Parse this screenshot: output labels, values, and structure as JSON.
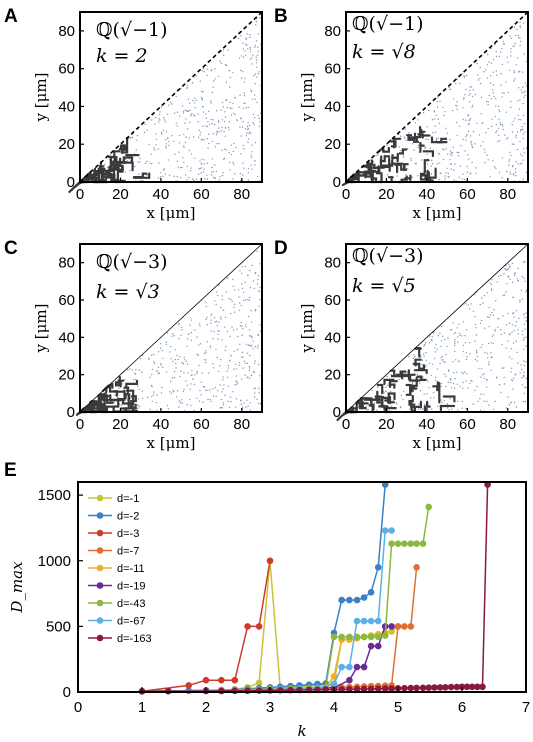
{
  "panel_a": {
    "label": "A",
    "field": "ℚ(√−1)",
    "k": "k = 2"
  },
  "panel_b": {
    "label": "B",
    "field": "ℚ(√−1)",
    "k": "k = √8"
  },
  "panel_c": {
    "label": "C",
    "field": "ℚ(√−3)",
    "k": "k = √3"
  },
  "panel_d": {
    "label": "D",
    "field": "ℚ(√−3)",
    "k": "k = √5"
  },
  "panel_e": {
    "label": "E"
  },
  "small_axes": {
    "xlabel": "x [μm]",
    "ylabel": "y [μm]",
    "xticks": [
      "0",
      "20",
      "40",
      "60",
      "80"
    ],
    "yticks": [
      "0",
      "20",
      "40",
      "60",
      "80"
    ]
  },
  "colors": {
    "line": "#000000",
    "cluster": "#3a3a3a",
    "background_dots": "#7f98b8"
  },
  "chart_data": {
    "type": "line",
    "xlabel": "k",
    "ylabel": "D_max",
    "xlim": [
      0,
      7
    ],
    "ylim": [
      0,
      1600
    ],
    "xticks": [
      "0",
      "1",
      "2",
      "3",
      "4",
      "5",
      "6",
      "7"
    ],
    "yticks": [
      "0",
      "500",
      "1000",
      "1500"
    ],
    "legend_position": "top-left",
    "series": [
      {
        "name": "d=-1",
        "color": "#c8c43a",
        "points": [
          [
            1,
            5
          ],
          [
            1.41,
            8
          ],
          [
            2,
            12
          ],
          [
            2.24,
            15
          ],
          [
            2.45,
            20
          ],
          [
            2.65,
            35
          ],
          [
            2.83,
            70
          ],
          [
            3,
            1000
          ],
          [
            3.16,
            30
          ],
          [
            3.32,
            35
          ],
          [
            3.46,
            40
          ],
          [
            3.61,
            45
          ],
          [
            3.74,
            50
          ],
          [
            3.87,
            55
          ],
          [
            4,
            65
          ],
          [
            4.12,
            400
          ],
          [
            4.24,
            400
          ],
          [
            4.36,
            410
          ],
          [
            4.47,
            420
          ],
          [
            4.58,
            430
          ],
          [
            4.69,
            440
          ],
          [
            4.8,
            450
          ],
          [
            4.9,
            460
          ],
          [
            5,
            500
          ]
        ]
      },
      {
        "name": "d=-2",
        "color": "#3a7fc8",
        "points": [
          [
            1,
            5
          ],
          [
            1.41,
            8
          ],
          [
            1.73,
            10
          ],
          [
            2,
            12
          ],
          [
            2.24,
            15
          ],
          [
            2.45,
            18
          ],
          [
            2.65,
            25
          ],
          [
            2.83,
            30
          ],
          [
            3,
            35
          ],
          [
            3.16,
            40
          ],
          [
            3.32,
            45
          ],
          [
            3.46,
            50
          ],
          [
            3.61,
            55
          ],
          [
            3.74,
            60
          ],
          [
            3.87,
            65
          ],
          [
            4,
            450
          ],
          [
            4.12,
            700
          ],
          [
            4.24,
            700
          ],
          [
            4.36,
            700
          ],
          [
            4.47,
            720
          ],
          [
            4.58,
            760
          ],
          [
            4.69,
            950
          ],
          [
            4.8,
            1580
          ]
        ]
      },
      {
        "name": "d=-3",
        "color": "#d03a2a",
        "points": [
          [
            1,
            5
          ],
          [
            1.73,
            50
          ],
          [
            2,
            90
          ],
          [
            2.24,
            90
          ],
          [
            2.45,
            90
          ],
          [
            2.65,
            500
          ],
          [
            2.83,
            500
          ],
          [
            3,
            1000
          ]
        ]
      },
      {
        "name": "d=-7",
        "color": "#e07030",
        "points": [
          [
            1,
            5
          ],
          [
            1.41,
            8
          ],
          [
            2,
            12
          ],
          [
            2.24,
            14
          ],
          [
            2.65,
            16
          ],
          [
            2.83,
            18
          ],
          [
            3,
            20
          ],
          [
            3.16,
            22
          ],
          [
            3.32,
            24
          ],
          [
            3.46,
            26
          ],
          [
            3.61,
            28
          ],
          [
            3.74,
            30
          ],
          [
            3.87,
            32
          ],
          [
            4,
            34
          ],
          [
            4.12,
            36
          ],
          [
            4.24,
            38
          ],
          [
            4.36,
            40
          ],
          [
            4.47,
            42
          ],
          [
            4.58,
            44
          ],
          [
            4.69,
            46
          ],
          [
            4.8,
            48
          ],
          [
            4.9,
            50
          ],
          [
            5,
            500
          ],
          [
            5.1,
            500
          ],
          [
            5.2,
            500
          ],
          [
            5.29,
            950
          ]
        ]
      },
      {
        "name": "d=-11",
        "color": "#e8b030",
        "points": [
          [
            1,
            5
          ],
          [
            1.41,
            8
          ],
          [
            2,
            12
          ],
          [
            2.24,
            14
          ],
          [
            2.45,
            16
          ],
          [
            2.65,
            18
          ],
          [
            2.83,
            20
          ],
          [
            3,
            22
          ],
          [
            3.16,
            24
          ],
          [
            3.32,
            26
          ],
          [
            3.46,
            28
          ],
          [
            3.61,
            30
          ],
          [
            3.74,
            32
          ],
          [
            3.87,
            35
          ],
          [
            4,
            120
          ],
          [
            4.12,
            400
          ],
          [
            4.24,
            400
          ],
          [
            4.36,
            410
          ],
          [
            4.47,
            420
          ],
          [
            4.58,
            430
          ],
          [
            4.69,
            440
          ],
          [
            4.8,
            450
          ]
        ]
      },
      {
        "name": "d=-19",
        "color": "#6a2a9a",
        "points": [
          [
            1,
            5
          ],
          [
            1.41,
            8
          ],
          [
            2,
            12
          ],
          [
            2.45,
            15
          ],
          [
            2.83,
            18
          ],
          [
            3.16,
            22
          ],
          [
            3.46,
            26
          ],
          [
            3.74,
            30
          ],
          [
            4,
            34
          ],
          [
            4.24,
            90
          ],
          [
            4.36,
            190
          ],
          [
            4.47,
            190
          ],
          [
            4.58,
            350
          ],
          [
            4.69,
            350
          ],
          [
            4.8,
            500
          ],
          [
            4.9,
            500
          ]
        ]
      },
      {
        "name": "d=-43",
        "color": "#8ab840",
        "points": [
          [
            1,
            5
          ],
          [
            1.41,
            8
          ],
          [
            2,
            12
          ],
          [
            2.24,
            14
          ],
          [
            2.45,
            16
          ],
          [
            2.65,
            18
          ],
          [
            2.83,
            20
          ],
          [
            3,
            22
          ],
          [
            3.16,
            24
          ],
          [
            3.32,
            26
          ],
          [
            3.46,
            28
          ],
          [
            3.61,
            30
          ],
          [
            3.74,
            32
          ],
          [
            3.87,
            35
          ],
          [
            4,
            420
          ],
          [
            4.12,
            420
          ],
          [
            4.24,
            420
          ],
          [
            4.36,
            420
          ],
          [
            4.47,
            420
          ],
          [
            4.58,
            420
          ],
          [
            4.69,
            420
          ],
          [
            4.8,
            430
          ],
          [
            4.9,
            1130
          ],
          [
            5,
            1130
          ],
          [
            5.1,
            1130
          ],
          [
            5.2,
            1130
          ],
          [
            5.29,
            1130
          ],
          [
            5.39,
            1130
          ],
          [
            5.48,
            1410
          ]
        ]
      },
      {
        "name": "d=-67",
        "color": "#5ab0e8",
        "points": [
          [
            1,
            5
          ],
          [
            1.41,
            8
          ],
          [
            2,
            12
          ],
          [
            2.45,
            15
          ],
          [
            2.83,
            18
          ],
          [
            3.16,
            22
          ],
          [
            3.46,
            26
          ],
          [
            3.74,
            30
          ],
          [
            4,
            60
          ],
          [
            4.12,
            190
          ],
          [
            4.24,
            190
          ],
          [
            4.36,
            540
          ],
          [
            4.47,
            540
          ],
          [
            4.58,
            540
          ],
          [
            4.69,
            540
          ],
          [
            4.8,
            1230
          ],
          [
            4.9,
            1230
          ]
        ]
      },
      {
        "name": "d=-163",
        "color": "#8a1a3a",
        "points": [
          [
            1,
            5
          ],
          [
            1.41,
            6
          ],
          [
            2,
            7
          ],
          [
            2.24,
            8
          ],
          [
            2.45,
            9
          ],
          [
            2.65,
            10
          ],
          [
            2.83,
            11
          ],
          [
            3,
            12
          ],
          [
            3.16,
            13
          ],
          [
            3.32,
            14
          ],
          [
            3.46,
            15
          ],
          [
            3.61,
            16
          ],
          [
            3.74,
            17
          ],
          [
            3.87,
            18
          ],
          [
            4,
            19
          ],
          [
            4.12,
            20
          ],
          [
            4.24,
            21
          ],
          [
            4.36,
            22
          ],
          [
            4.47,
            23
          ],
          [
            4.58,
            24
          ],
          [
            4.69,
            25
          ],
          [
            4.8,
            26
          ],
          [
            4.9,
            27
          ],
          [
            5,
            28
          ],
          [
            5.1,
            29
          ],
          [
            5.2,
            30
          ],
          [
            5.29,
            31
          ],
          [
            5.39,
            32
          ],
          [
            5.48,
            33
          ],
          [
            5.57,
            34
          ],
          [
            5.66,
            35
          ],
          [
            5.74,
            36
          ],
          [
            5.83,
            37
          ],
          [
            5.92,
            38
          ],
          [
            6,
            40
          ],
          [
            6.08,
            40
          ],
          [
            6.16,
            40
          ],
          [
            6.24,
            40
          ],
          [
            6.32,
            40
          ],
          [
            6.4,
            1580
          ]
        ]
      }
    ]
  }
}
